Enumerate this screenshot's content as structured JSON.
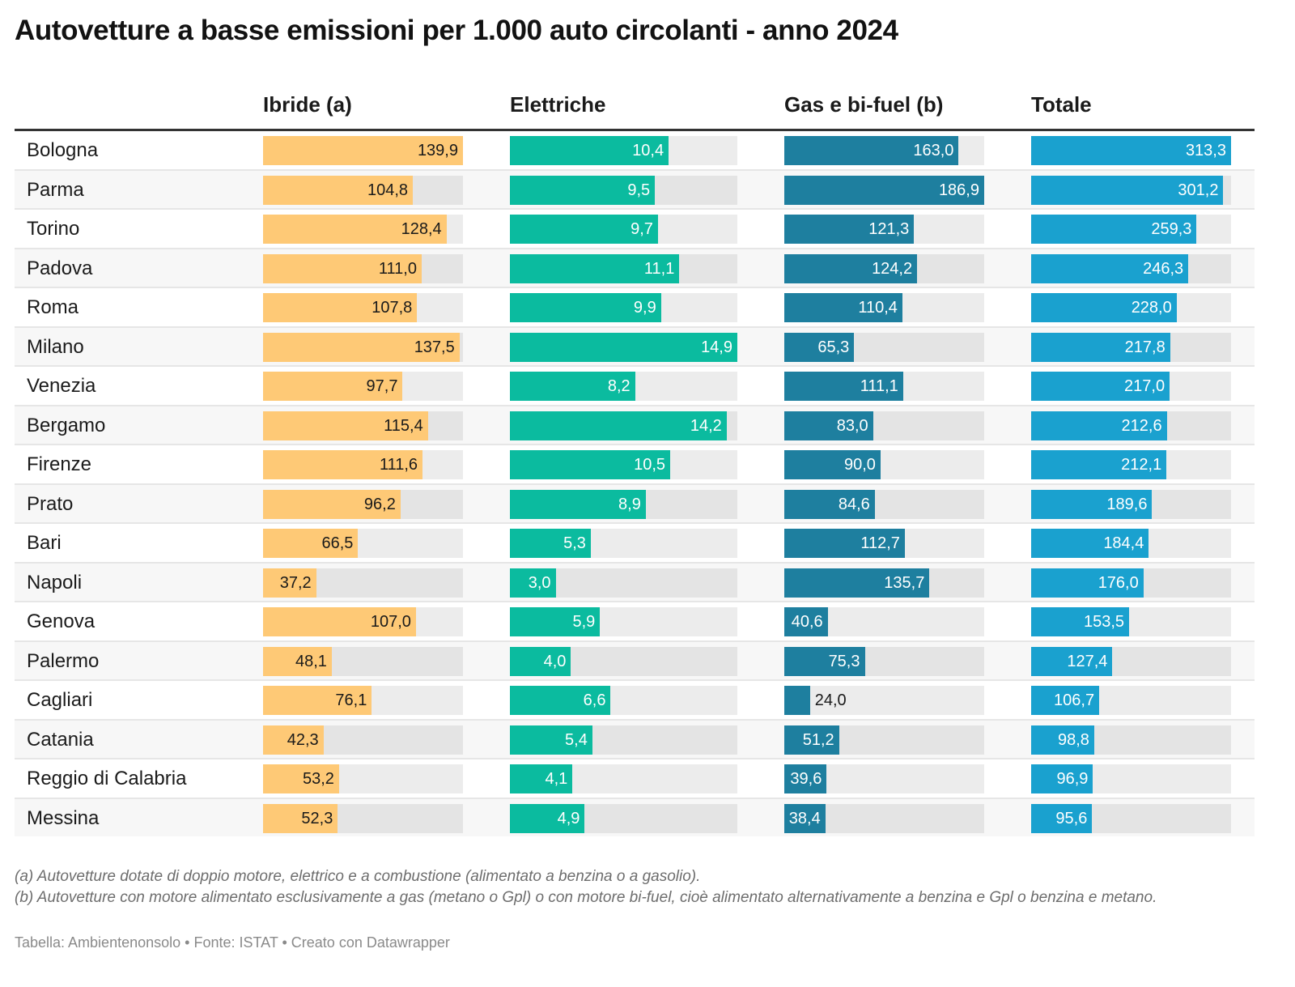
{
  "title": "Autovetture a basse emissioni per 1.000 auto circolanti - anno 2024",
  "colors": {
    "ibride": "#fec976",
    "elettriche": "#0bbb9f",
    "gas": "#1e7f9f",
    "totale": "#1aa1cf",
    "track": "#ececec",
    "rule": "#333333"
  },
  "headers": {
    "city": "",
    "ibride": "Ibride (a)",
    "elettriche": "Elettriche",
    "gas": "Gas e bi-fuel (b)",
    "totale": "Totale"
  },
  "chart_data": {
    "type": "table",
    "title": "Autovetture a basse emissioni per 1.000 auto circolanti - anno 2024",
    "columns": [
      "Ibride (a)",
      "Elettriche",
      "Gas e bi-fuel (b)",
      "Totale"
    ],
    "column_max": [
      139.9,
      14.9,
      186.9,
      313.3
    ],
    "rows": [
      {
        "city": "Bologna",
        "ibride": 139.9,
        "elettriche": 10.4,
        "gas": 163.0,
        "totale": 313.3,
        "labels": [
          "139,9",
          "10,4",
          "163,0",
          "313,3"
        ]
      },
      {
        "city": "Parma",
        "ibride": 104.8,
        "elettriche": 9.5,
        "gas": 186.9,
        "totale": 301.2,
        "labels": [
          "104,8",
          "9,5",
          "186,9",
          "301,2"
        ]
      },
      {
        "city": "Torino",
        "ibride": 128.4,
        "elettriche": 9.7,
        "gas": 121.3,
        "totale": 259.3,
        "labels": [
          "128,4",
          "9,7",
          "121,3",
          "259,3"
        ]
      },
      {
        "city": "Padova",
        "ibride": 111.0,
        "elettriche": 11.1,
        "gas": 124.2,
        "totale": 246.3,
        "labels": [
          "111,0",
          "11,1",
          "124,2",
          "246,3"
        ]
      },
      {
        "city": "Roma",
        "ibride": 107.8,
        "elettriche": 9.9,
        "gas": 110.4,
        "totale": 228.0,
        "labels": [
          "107,8",
          "9,9",
          "110,4",
          "228,0"
        ]
      },
      {
        "city": "Milano",
        "ibride": 137.5,
        "elettriche": 14.9,
        "gas": 65.3,
        "totale": 217.8,
        "labels": [
          "137,5",
          "14,9",
          "65,3",
          "217,8"
        ]
      },
      {
        "city": "Venezia",
        "ibride": 97.7,
        "elettriche": 8.2,
        "gas": 111.1,
        "totale": 217.0,
        "labels": [
          "97,7",
          "8,2",
          "111,1",
          "217,0"
        ]
      },
      {
        "city": "Bergamo",
        "ibride": 115.4,
        "elettriche": 14.2,
        "gas": 83.0,
        "totale": 212.6,
        "labels": [
          "115,4",
          "14,2",
          "83,0",
          "212,6"
        ]
      },
      {
        "city": "Firenze",
        "ibride": 111.6,
        "elettriche": 10.5,
        "gas": 90.0,
        "totale": 212.1,
        "labels": [
          "111,6",
          "10,5",
          "90,0",
          "212,1"
        ]
      },
      {
        "city": "Prato",
        "ibride": 96.2,
        "elettriche": 8.9,
        "gas": 84.6,
        "totale": 189.6,
        "labels": [
          "96,2",
          "8,9",
          "84,6",
          "189,6"
        ]
      },
      {
        "city": "Bari",
        "ibride": 66.5,
        "elettriche": 5.3,
        "gas": 112.7,
        "totale": 184.4,
        "labels": [
          "66,5",
          "5,3",
          "112,7",
          "184,4"
        ]
      },
      {
        "city": "Napoli",
        "ibride": 37.2,
        "elettriche": 3.0,
        "gas": 135.7,
        "totale": 176.0,
        "labels": [
          "37,2",
          "3,0",
          "135,7",
          "176,0"
        ]
      },
      {
        "city": "Genova",
        "ibride": 107.0,
        "elettriche": 5.9,
        "gas": 40.6,
        "totale": 153.5,
        "labels": [
          "107,0",
          "5,9",
          "40,6",
          "153,5"
        ]
      },
      {
        "city": "Palermo",
        "ibride": 48.1,
        "elettriche": 4.0,
        "gas": 75.3,
        "totale": 127.4,
        "labels": [
          "48,1",
          "4,0",
          "75,3",
          "127,4"
        ]
      },
      {
        "city": "Cagliari",
        "ibride": 76.1,
        "elettriche": 6.6,
        "gas": 24.0,
        "totale": 106.7,
        "labels": [
          "76,1",
          "6,6",
          "24,0",
          "106,7"
        ]
      },
      {
        "city": "Catania",
        "ibride": 42.3,
        "elettriche": 5.4,
        "gas": 51.2,
        "totale": 98.8,
        "labels": [
          "42,3",
          "5,4",
          "51,2",
          "98,8"
        ]
      },
      {
        "city": "Reggio di Calabria",
        "ibride": 53.2,
        "elettriche": 4.1,
        "gas": 39.6,
        "totale": 96.9,
        "labels": [
          "53,2",
          "4,1",
          "39,6",
          "96,9"
        ]
      },
      {
        "city": "Messina",
        "ibride": 52.3,
        "elettriche": 4.9,
        "gas": 38.4,
        "totale": 95.6,
        "labels": [
          "52,3",
          "4,9",
          "38,4",
          "95,6"
        ]
      }
    ]
  },
  "notes": {
    "a": "(a) Autovetture dotate di doppio motore, elettrico e a combustione (alimentato a benzina o a gasolio).",
    "b": "(b) Autovetture con motore alimentato esclusivamente a gas (metano o Gpl) o con motore bi-fuel, cioè alimentato alternativamente a benzina e Gpl o benzina e metano."
  },
  "credits": "Tabella: Ambientenonsolo • Fonte: ISTAT • Creato con Datawrapper"
}
